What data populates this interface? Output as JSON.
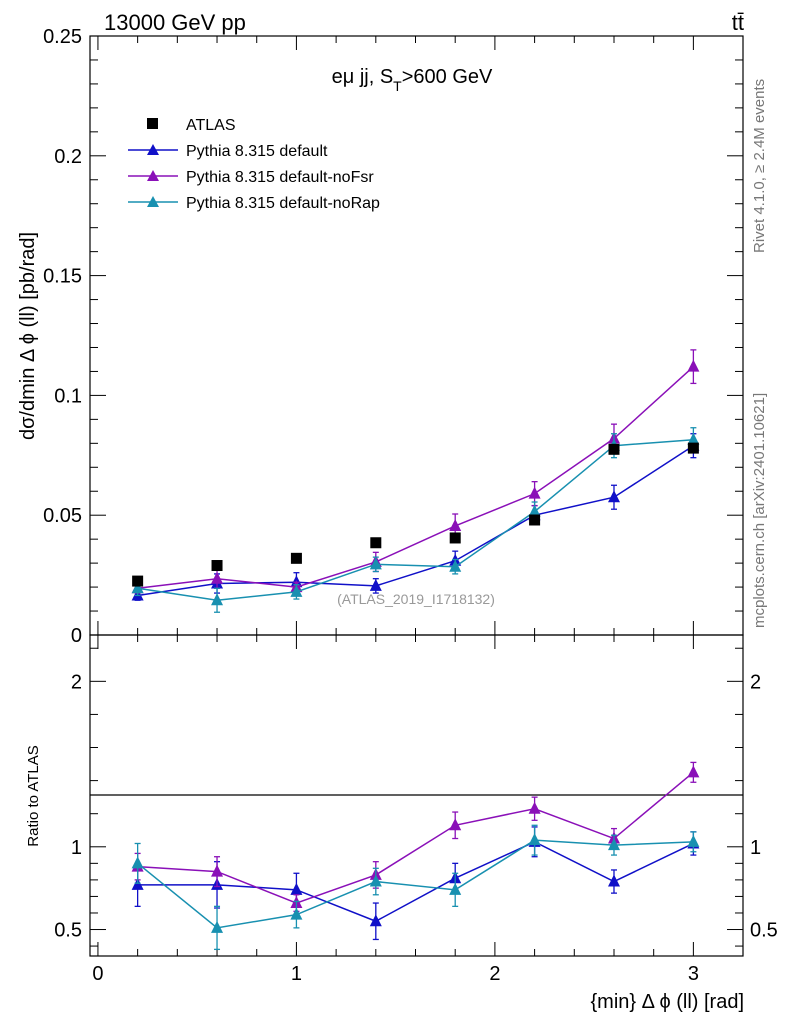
{
  "header": {
    "energy_label": "13000 GeV pp",
    "process_label": "tt̄"
  },
  "side_labels": {
    "rivet": "Rivet 4.1.0, ≥ 2.4M events",
    "mcplots": "mcplots.cern.ch [arXiv:2401.10621]"
  },
  "chart_data": {
    "type": "line",
    "title_main": "eμ jj, S",
    "title_sub": "T",
    "title_tail": ">600 GeV",
    "analysis_tag": "(ATLAS_2019_I1718132)",
    "xlabel": "{min} Δ ϕ (ll) [rad]",
    "ylabel": "dσ/dmin Δ ϕ (ll) [pb/rad]",
    "ratio_ylabel": "Ratio to ATLAS",
    "xlim": [
      -0.04,
      3.25
    ],
    "ylim": [
      0,
      0.25
    ],
    "ratio_ylim": [
      0.34,
      2.28
    ],
    "x_ticks": [
      0,
      1,
      2,
      3
    ],
    "x_tick_labels": [
      "0",
      "1",
      "2",
      "3"
    ],
    "y_ticks": [
      0,
      0.05,
      0.1,
      0.15,
      0.2,
      0.25
    ],
    "y_tick_labels": [
      "0",
      "0.05",
      "0.1",
      "0.15",
      "0.2",
      "0.25"
    ],
    "ratio_ticks": [
      0.5,
      1,
      2
    ],
    "ratio_tick_labels": [
      "0.5",
      "1",
      "2"
    ],
    "x": [
      0.2,
      0.6,
      1.0,
      1.4,
      1.8,
      2.2,
      2.6,
      3.0
    ],
    "data": {
      "name": "ATLAS",
      "color": "#000000",
      "values": [
        0.0225,
        0.029,
        0.032,
        0.0385,
        0.0405,
        0.048,
        0.0775,
        0.078
      ]
    },
    "series": [
      {
        "name": "Pythia 8.315 default",
        "color": "#1010c8",
        "values": [
          0.0165,
          0.0215,
          0.022,
          0.0205,
          0.031,
          0.05,
          0.0575,
          0.079
        ],
        "errors": [
          0.002,
          0.004,
          0.004,
          0.003,
          0.004,
          0.004,
          0.005,
          0.005
        ],
        "ratio": [
          0.77,
          0.77,
          0.74,
          0.55,
          0.81,
          1.03,
          0.79,
          1.02
        ],
        "ratio_errors": [
          0.13,
          0.14,
          0.1,
          0.11,
          0.09,
          0.09,
          0.07,
          0.07
        ]
      },
      {
        "name": "Pythia 8.315 default-noFsr",
        "color": "#8a10b8",
        "values": [
          0.0195,
          0.0235,
          0.02,
          0.0305,
          0.0455,
          0.059,
          0.082,
          0.112
        ],
        "errors": [
          0.002,
          0.004,
          0.002,
          0.004,
          0.005,
          0.005,
          0.006,
          0.007
        ],
        "ratio": [
          0.88,
          0.85,
          0.66,
          0.83,
          1.13,
          1.23,
          1.05,
          1.45
        ],
        "ratio_errors": [
          0.08,
          0.09,
          0.05,
          0.08,
          0.08,
          0.07,
          0.06,
          0.06
        ]
      },
      {
        "name": "Pythia 8.315 default-noRap",
        "color": "#1890b0",
        "values": [
          0.0195,
          0.0145,
          0.018,
          0.0295,
          0.0285,
          0.0515,
          0.079,
          0.0815
        ],
        "errors": [
          0.003,
          0.005,
          0.003,
          0.003,
          0.003,
          0.004,
          0.005,
          0.005
        ],
        "ratio": [
          0.9,
          0.51,
          0.59,
          0.79,
          0.74,
          1.04,
          1.01,
          1.03
        ],
        "ratio_errors": [
          0.12,
          0.13,
          0.08,
          0.08,
          0.1,
          0.09,
          0.06,
          0.06
        ]
      }
    ]
  }
}
